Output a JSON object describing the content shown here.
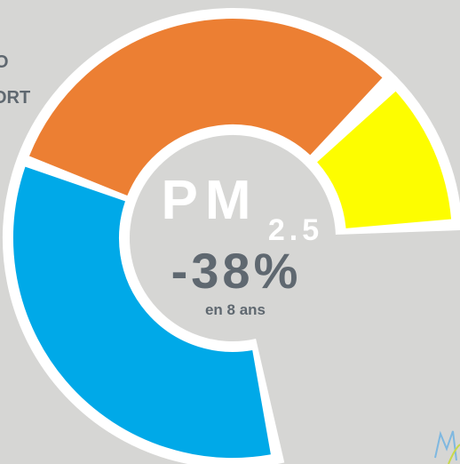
{
  "side_text": [
    "O",
    "ORT"
  ],
  "center": {
    "pollutant": "PM",
    "subscript": "2.5",
    "change": "-38%",
    "period": "en 8 ans"
  }
}
